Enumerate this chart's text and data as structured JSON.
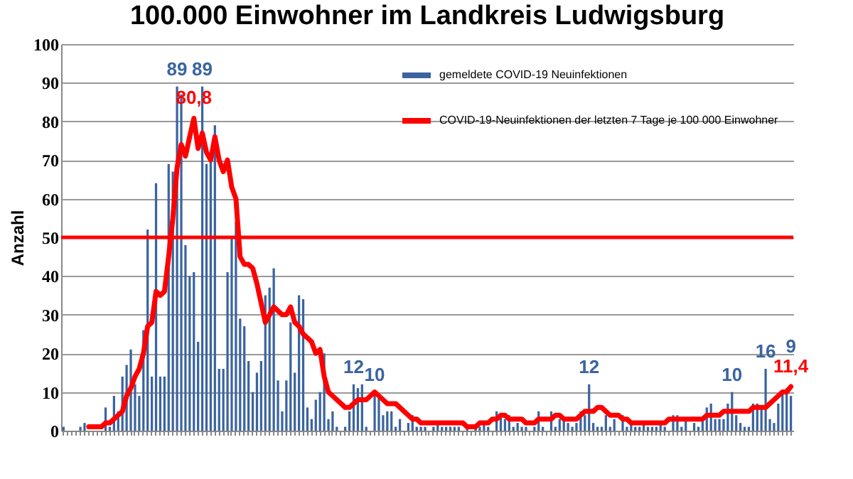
{
  "chart_data": {
    "type": "bar",
    "title": "100.000 Einwohner im Landkreis Ludwigsburg",
    "ylabel": "Anzahl",
    "categories": [
      null,
      null,
      null,
      null,
      null,
      null,
      null,
      null,
      null,
      null,
      null,
      null,
      null,
      null,
      null,
      null,
      null,
      null,
      null,
      null,
      null,
      null,
      null,
      null,
      null,
      null,
      null,
      null,
      null,
      null,
      null,
      null,
      null,
      null,
      null,
      null,
      null,
      null,
      null,
      null,
      null,
      null,
      null,
      null,
      null,
      null,
      null,
      null,
      null,
      null,
      null,
      null,
      null,
      null,
      null,
      null,
      null,
      null,
      null,
      null,
      null,
      null,
      null,
      null,
      null,
      null,
      null,
      null,
      null,
      null,
      null,
      null,
      null,
      null,
      null,
      null,
      null,
      null,
      null,
      null,
      null,
      null,
      null,
      null,
      null,
      null,
      null,
      null,
      null,
      null,
      null,
      null,
      null,
      null,
      null,
      null,
      null,
      null,
      null,
      null,
      null,
      null,
      null,
      null,
      null,
      null,
      null,
      null,
      null,
      null,
      null,
      null,
      null,
      null,
      null,
      null,
      null,
      null,
      null,
      null,
      null,
      null,
      null,
      null,
      null,
      null,
      null,
      null,
      null,
      null,
      null,
      null,
      null,
      null,
      null,
      null,
      null,
      null,
      null,
      null,
      null,
      null,
      null,
      null,
      null,
      null,
      null,
      null,
      null,
      null,
      null,
      null,
      null,
      null,
      null,
      null,
      null,
      null,
      null,
      null,
      null,
      null,
      null,
      null,
      null,
      null,
      null,
      null,
      null,
      null,
      null,
      null,
      null,
      null
    ],
    "series": [
      {
        "name": "gemeldete COVID-19  Neuinfektionen",
        "color": "#3b64a0",
        "values": [
          1,
          0,
          0,
          0,
          1,
          2,
          0,
          0,
          0,
          0,
          6,
          1,
          9,
          5,
          14,
          17,
          21,
          12,
          9,
          26,
          52,
          14,
          64,
          14,
          14,
          69,
          67,
          89,
          87,
          48,
          40,
          41,
          23,
          89,
          69,
          70,
          79,
          16,
          16,
          41,
          50,
          54,
          29,
          27,
          18,
          10,
          15,
          18,
          35,
          37,
          42,
          13,
          5,
          13,
          28,
          15,
          35,
          34,
          6,
          3,
          8,
          10,
          20,
          3,
          5,
          1,
          0,
          1,
          5,
          12,
          11,
          12,
          1,
          0,
          10,
          9,
          4,
          5,
          5,
          1,
          3,
          0,
          2,
          4,
          1,
          1,
          1,
          0,
          1,
          2,
          1,
          1,
          1,
          1,
          1,
          0,
          1,
          0,
          1,
          1,
          2,
          1,
          0,
          5,
          4,
          3,
          4,
          1,
          2,
          1,
          1,
          0,
          1,
          5,
          1,
          0,
          5,
          1,
          3,
          3,
          2,
          1,
          2,
          5,
          4,
          12,
          2,
          1,
          1,
          4,
          1,
          3,
          0,
          4,
          1,
          2,
          1,
          1,
          2,
          1,
          1,
          1,
          2,
          1,
          0,
          4,
          4,
          1,
          3,
          0,
          2,
          1,
          3,
          6,
          7,
          3,
          3,
          3,
          7,
          10,
          4,
          2,
          1,
          1,
          7,
          7,
          6,
          16,
          3,
          2,
          7,
          10,
          11,
          9
        ],
        "value_labels": [
          null,
          null,
          null,
          null,
          null,
          null,
          null,
          null,
          null,
          null,
          null,
          null,
          null,
          null,
          null,
          null,
          null,
          null,
          null,
          null,
          null,
          null,
          null,
          null,
          null,
          null,
          null,
          "89",
          null,
          null,
          null,
          null,
          null,
          "89",
          null,
          null,
          null,
          null,
          null,
          null,
          null,
          null,
          null,
          null,
          null,
          null,
          null,
          null,
          null,
          null,
          null,
          null,
          null,
          null,
          null,
          null,
          null,
          null,
          null,
          null,
          null,
          null,
          null,
          null,
          null,
          null,
          null,
          null,
          null,
          "12",
          null,
          null,
          null,
          null,
          "10",
          null,
          null,
          null,
          null,
          null,
          null,
          null,
          null,
          null,
          null,
          null,
          null,
          null,
          null,
          null,
          null,
          null,
          null,
          null,
          null,
          null,
          null,
          null,
          null,
          null,
          null,
          null,
          null,
          null,
          null,
          null,
          null,
          null,
          null,
          null,
          null,
          null,
          null,
          null,
          null,
          null,
          null,
          null,
          null,
          null,
          null,
          null,
          null,
          null,
          null,
          "12",
          null,
          null,
          null,
          null,
          null,
          null,
          null,
          null,
          null,
          null,
          null,
          null,
          null,
          null,
          null,
          null,
          null,
          null,
          null,
          null,
          null,
          null,
          null,
          null,
          null,
          null,
          null,
          null,
          null,
          null,
          null,
          null,
          null,
          "10",
          null,
          null,
          null,
          null,
          null,
          null,
          null,
          "16",
          null,
          null,
          null,
          null,
          null,
          "9"
        ]
      },
      {
        "name": "COVID-19-Neuinfektionen der letzten 7 Tage je 100 000 Einwohner",
        "type": "line",
        "color": "#ff0000",
        "values": [
          null,
          null,
          null,
          null,
          null,
          null,
          1,
          1,
          1,
          1,
          2,
          2,
          3,
          4,
          5,
          9,
          11,
          14,
          16,
          20,
          27,
          28,
          36,
          35,
          36,
          45,
          55,
          68,
          74,
          71,
          76,
          80.8,
          73,
          77,
          72,
          70,
          76,
          70,
          67,
          70,
          63,
          60,
          45,
          43,
          43,
          42,
          38,
          33,
          28,
          30,
          32,
          31,
          30,
          30,
          32,
          28,
          27,
          25,
          24,
          23,
          20,
          21,
          14,
          10,
          9,
          8,
          7,
          6,
          6,
          7,
          8,
          8,
          8,
          9,
          10,
          9,
          8,
          7,
          7,
          7,
          6,
          5,
          4,
          3,
          3,
          2,
          2,
          2,
          2,
          2,
          2,
          2,
          2,
          2,
          2,
          2,
          1,
          1,
          1,
          2,
          2,
          2,
          3,
          3,
          4,
          4,
          3,
          3,
          3,
          3,
          2,
          2,
          2,
          3,
          3,
          3,
          3,
          4,
          4,
          3,
          3,
          3,
          3,
          4,
          5,
          5,
          5,
          6,
          6,
          5,
          4,
          4,
          4,
          3,
          3,
          2,
          2,
          2,
          2,
          2,
          2,
          2,
          2,
          2,
          3,
          3,
          3,
          3,
          3,
          3,
          3,
          3,
          3,
          4,
          4,
          4,
          4,
          5,
          5,
          5,
          5,
          5,
          5,
          5,
          6,
          6,
          6,
          6,
          7,
          8,
          9,
          10,
          10,
          11.4
        ],
        "value_labels": [
          null,
          null,
          null,
          null,
          null,
          null,
          null,
          null,
          null,
          null,
          null,
          null,
          null,
          null,
          null,
          null,
          null,
          null,
          null,
          null,
          null,
          null,
          null,
          null,
          null,
          null,
          null,
          null,
          null,
          null,
          null,
          "80,8",
          null,
          null,
          null,
          null,
          null,
          null,
          null,
          null,
          null,
          null,
          null,
          null,
          null,
          null,
          null,
          null,
          null,
          null,
          null,
          null,
          null,
          null,
          null,
          null,
          null,
          null,
          null,
          null,
          null,
          null,
          null,
          null,
          null,
          null,
          null,
          null,
          null,
          null,
          null,
          null,
          null,
          null,
          null,
          null,
          null,
          null,
          null,
          null,
          null,
          null,
          null,
          null,
          null,
          null,
          null,
          null,
          null,
          null,
          null,
          null,
          null,
          null,
          null,
          null,
          null,
          null,
          null,
          null,
          null,
          null,
          null,
          null,
          null,
          null,
          null,
          null,
          null,
          null,
          null,
          null,
          null,
          null,
          null,
          null,
          null,
          null,
          null,
          null,
          null,
          null,
          null,
          null,
          null,
          null,
          null,
          null,
          null,
          null,
          null,
          null,
          null,
          null,
          null,
          null,
          null,
          null,
          null,
          null,
          null,
          null,
          null,
          null,
          null,
          null,
          null,
          null,
          null,
          null,
          null,
          null,
          null,
          null,
          null,
          null,
          null,
          null,
          null,
          null,
          null,
          null,
          null,
          null,
          null,
          null,
          null,
          null,
          null,
          null,
          null,
          null,
          null,
          "11,4"
        ]
      }
    ],
    "ylim": [
      0,
      100
    ],
    "yticks": [
      0,
      10,
      20,
      30,
      40,
      50,
      60,
      70,
      80,
      90,
      100
    ],
    "grid": "y",
    "legend": "top right",
    "tick_labels": "y",
    "ref_lines": [
      {
        "axis": "y",
        "value": 50,
        "color": "#ff0000"
      }
    ]
  }
}
